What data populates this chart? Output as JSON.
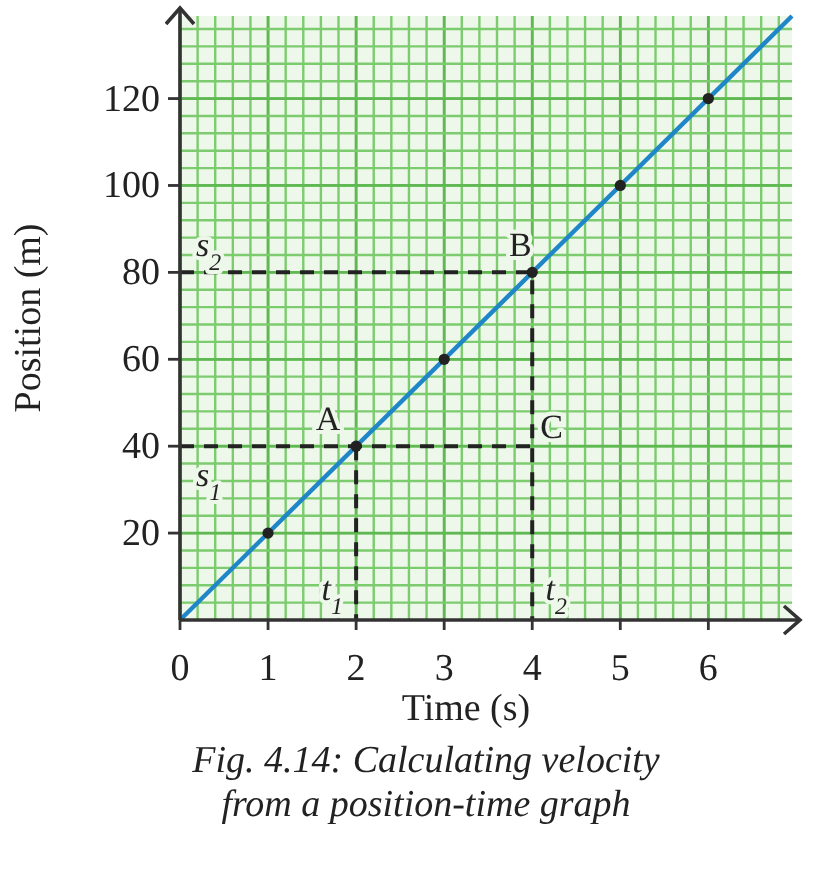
{
  "chart_data": {
    "type": "line",
    "xlabel": "Time (s)",
    "ylabel": "Position (m)",
    "xlim": [
      0,
      6.95
    ],
    "ylim": [
      0,
      139
    ],
    "xticks": [
      0,
      1,
      2,
      3,
      4,
      5,
      6
    ],
    "yticks": [
      20,
      40,
      60,
      80,
      100,
      120
    ],
    "grid": true,
    "series": [
      {
        "color": "#1f86c8",
        "x": [
          0,
          6.95
        ],
        "values": [
          0,
          139
        ],
        "marker": "none",
        "line_style": "solid"
      },
      {
        "color": "#222222",
        "x": [
          0,
          4,
          4
        ],
        "values": [
          80,
          80,
          0
        ],
        "marker": "none",
        "line_style": "dashed"
      },
      {
        "color": "#222222",
        "x": [
          0,
          4
        ],
        "values": [
          40,
          40
        ],
        "marker": "none",
        "line_style": "dashed"
      },
      {
        "color": "#222222",
        "x": [
          2,
          2
        ],
        "values": [
          40,
          0
        ],
        "marker": "none",
        "line_style": "dashed"
      },
      {
        "type": "scatter",
        "color": "#222222",
        "x": [
          1,
          2,
          3,
          4,
          5,
          6
        ],
        "values": [
          20,
          40,
          60,
          80,
          100,
          120
        ],
        "marker": "circle"
      }
    ],
    "annotations": [
      {
        "text": "A",
        "x": 2,
        "y": 40
      },
      {
        "text": "B",
        "x": 4,
        "y": 80
      },
      {
        "text": "C",
        "x": 4,
        "y": 40
      },
      {
        "text": "s$_{1}$",
        "x": 0,
        "y": 40
      },
      {
        "text": "s$_{2}$",
        "x": 0,
        "y": 80
      },
      {
        "text": "t$_{1}$",
        "x": 2,
        "y": 0
      },
      {
        "text": "t$_{2}$",
        "x": 4,
        "y": 0
      },
      "Fig. 4.14: Calculating velocity from a position-time graph"
    ]
  }
}
